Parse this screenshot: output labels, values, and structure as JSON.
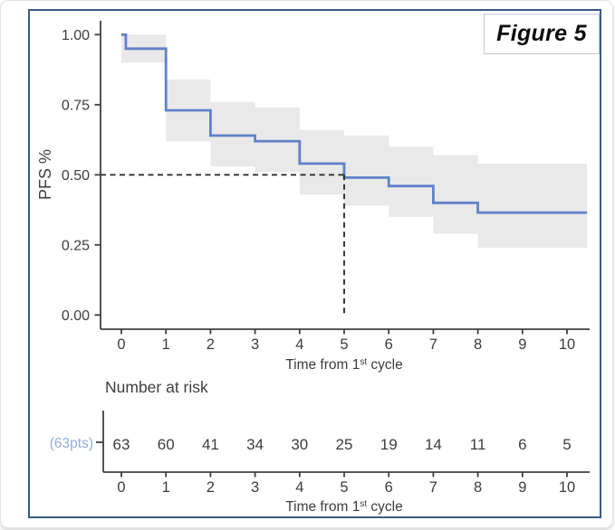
{
  "page": {
    "figure_label": "Figure 5"
  },
  "chart_data": {
    "type": "line",
    "subtype": "kaplan-meier-step-curve",
    "title": "",
    "ylabel": "PFS %",
    "xlabel": "Time from 1st cycle",
    "xlabel_parts": {
      "prefix": "Time from 1",
      "superscript": "st",
      "suffix": " cycle"
    },
    "x_ticks": [
      0,
      1,
      2,
      3,
      4,
      5,
      6,
      7,
      8,
      9,
      10
    ],
    "y_tick_labels": [
      "0.00",
      "0.25",
      "0.50",
      "0.75",
      "1.00"
    ],
    "y_tick_values": [
      0,
      0.25,
      0.5,
      0.75,
      1.0
    ],
    "xlim": [
      0,
      10.45
    ],
    "ylim": [
      0,
      1.0
    ],
    "grid": false,
    "legend": "none",
    "km_curve": {
      "step_times": [
        0,
        0.1,
        1,
        2,
        3,
        4,
        5,
        6,
        7,
        8
      ],
      "step_survival": [
        1.0,
        0.95,
        0.73,
        0.64,
        0.62,
        0.54,
        0.49,
        0.46,
        0.4,
        0.365
      ],
      "end_time": 10.45
    },
    "ci_band": [
      {
        "t0": 0,
        "t1": 1,
        "lo": 0.9,
        "hi": 1.0
      },
      {
        "t0": 1,
        "t1": 2,
        "lo": 0.62,
        "hi": 0.84
      },
      {
        "t0": 2,
        "t1": 3,
        "lo": 0.53,
        "hi": 0.76
      },
      {
        "t0": 3,
        "t1": 4,
        "lo": 0.51,
        "hi": 0.74
      },
      {
        "t0": 4,
        "t1": 5,
        "lo": 0.43,
        "hi": 0.66
      },
      {
        "t0": 5,
        "t1": 6,
        "lo": 0.39,
        "hi": 0.64
      },
      {
        "t0": 6,
        "t1": 7,
        "lo": 0.35,
        "hi": 0.6
      },
      {
        "t0": 7,
        "t1": 8,
        "lo": 0.29,
        "hi": 0.57
      },
      {
        "t0": 8,
        "t1": 10.45,
        "lo": 0.24,
        "hi": 0.54
      }
    ],
    "median_marker": {
      "time": 5,
      "survival": 0.5
    },
    "number_at_risk": {
      "title": "Number at risk",
      "group_label": "(63pts)",
      "times": [
        0,
        1,
        2,
        3,
        4,
        5,
        6,
        7,
        8,
        9,
        10
      ],
      "values": [
        63,
        60,
        41,
        34,
        30,
        25,
        19,
        14,
        11,
        6,
        5
      ]
    },
    "colors": {
      "curve": "#5f82c8",
      "ci_band": "#e9e9e9",
      "median_dash": "#2f2f2f",
      "axis": "#404040",
      "text": "#3d3d3d",
      "risk_label": "#92abdc",
      "frame": "#3b5a85"
    }
  }
}
